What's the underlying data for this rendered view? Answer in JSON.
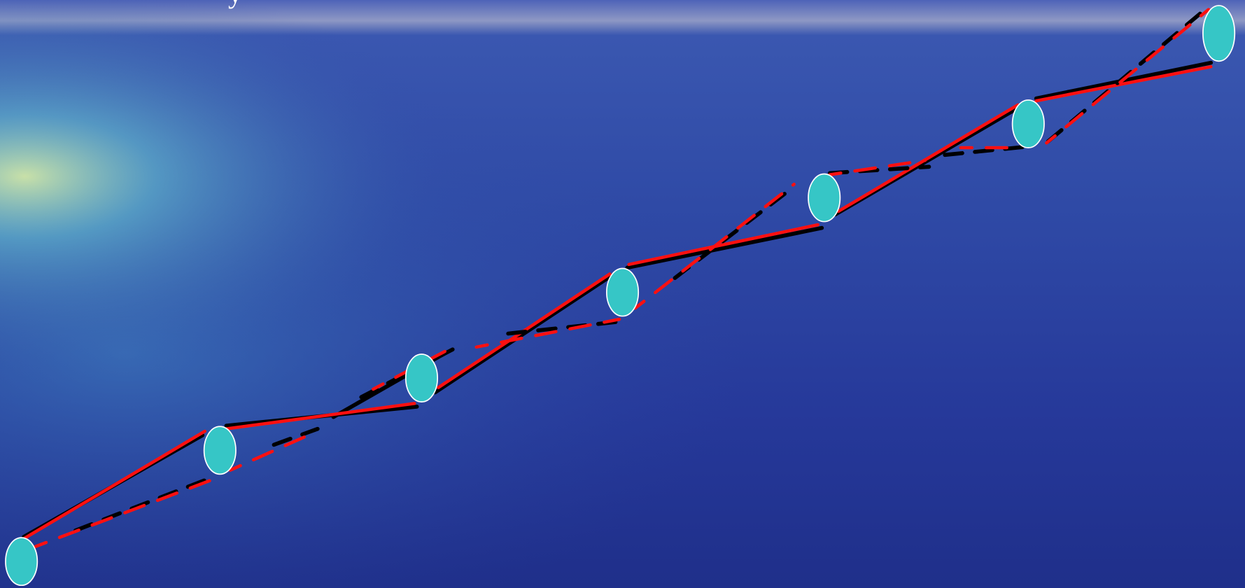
{
  "header": {
    "text": "y"
  }
}
